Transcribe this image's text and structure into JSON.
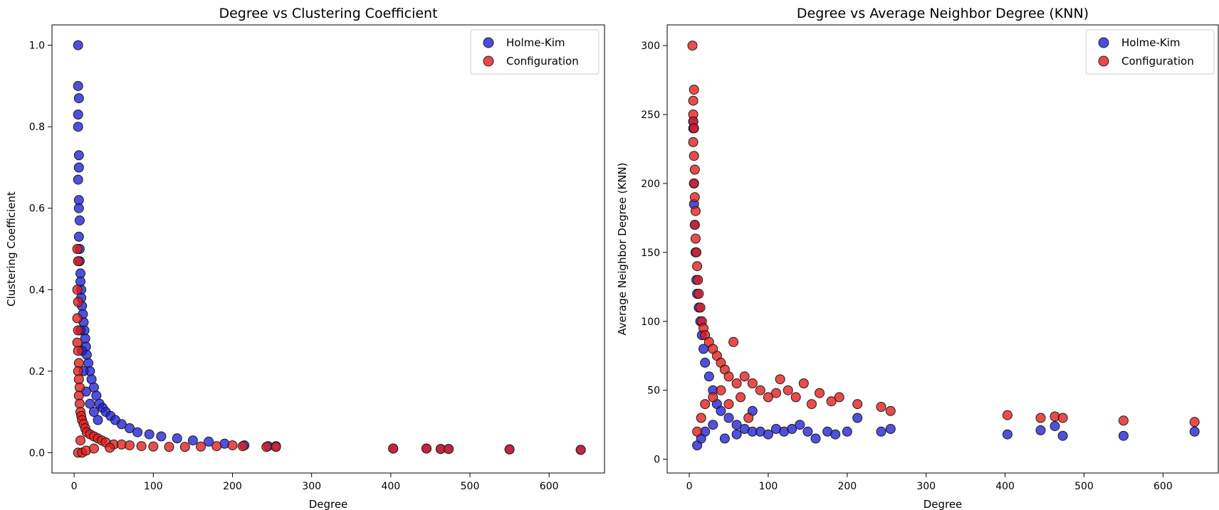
{
  "chart_data": [
    {
      "type": "scatter",
      "title": "Degree vs Clustering Coefficient",
      "xlabel": "Degree",
      "ylabel": "Clustering Coefficient",
      "xlim": [
        -28,
        670
      ],
      "ylim": [
        -0.05,
        1.05
      ],
      "xticks": [
        0,
        100,
        200,
        300,
        400,
        500,
        600
      ],
      "yticks": [
        0.0,
        0.2,
        0.4,
        0.6,
        0.8,
        1.0
      ],
      "ytick_labels": [
        "0.0",
        "0.2",
        "0.4",
        "0.6",
        "0.8",
        "1.0"
      ],
      "legend_position": "top-right",
      "series": [
        {
          "name": "Holme-Kim",
          "color": "#1f1fd6",
          "points": [
            [
              5,
              1.0
            ],
            [
              5,
              0.9
            ],
            [
              6,
              0.87
            ],
            [
              5,
              0.83
            ],
            [
              5,
              0.8
            ],
            [
              6,
              0.73
            ],
            [
              6,
              0.7
            ],
            [
              5,
              0.67
            ],
            [
              6,
              0.62
            ],
            [
              6,
              0.6
            ],
            [
              7,
              0.57
            ],
            [
              6,
              0.53
            ],
            [
              7,
              0.5
            ],
            [
              7,
              0.47
            ],
            [
              8,
              0.44
            ],
            [
              8,
              0.42
            ],
            [
              9,
              0.4
            ],
            [
              9,
              0.38
            ],
            [
              10,
              0.36
            ],
            [
              11,
              0.34
            ],
            [
              12,
              0.32
            ],
            [
              13,
              0.3
            ],
            [
              14,
              0.28
            ],
            [
              15,
              0.26
            ],
            [
              16,
              0.24
            ],
            [
              18,
              0.22
            ],
            [
              20,
              0.2
            ],
            [
              22,
              0.18
            ],
            [
              25,
              0.16
            ],
            [
              28,
              0.14
            ],
            [
              32,
              0.12
            ],
            [
              36,
              0.11
            ],
            [
              40,
              0.1
            ],
            [
              46,
              0.09
            ],
            [
              52,
              0.08
            ],
            [
              60,
              0.07
            ],
            [
              70,
              0.06
            ],
            [
              80,
              0.05
            ],
            [
              95,
              0.045
            ],
            [
              110,
              0.04
            ],
            [
              130,
              0.035
            ],
            [
              150,
              0.03
            ],
            [
              170,
              0.027
            ],
            [
              190,
              0.022
            ],
            [
              215,
              0.018
            ],
            [
              245,
              0.016
            ],
            [
              255,
              0.016
            ],
            [
              403,
              0.01
            ],
            [
              445,
              0.01
            ],
            [
              463,
              0.009
            ],
            [
              473,
              0.009
            ],
            [
              550,
              0.008
            ],
            [
              640,
              0.007
            ],
            [
              10,
              0.25
            ],
            [
              12,
              0.2
            ],
            [
              15,
              0.15
            ],
            [
              20,
              0.12
            ],
            [
              25,
              0.1
            ],
            [
              30,
              0.08
            ],
            [
              8,
              0.3
            ]
          ]
        },
        {
          "name": "Configuration",
          "color": "#e41a1a",
          "points": [
            [
              4,
              0.5
            ],
            [
              5,
              0.47
            ],
            [
              4,
              0.4
            ],
            [
              5,
              0.37
            ],
            [
              4,
              0.33
            ],
            [
              5,
              0.3
            ],
            [
              4,
              0.27
            ],
            [
              5,
              0.25
            ],
            [
              6,
              0.22
            ],
            [
              5,
              0.2
            ],
            [
              6,
              0.18
            ],
            [
              7,
              0.16
            ],
            [
              6,
              0.14
            ],
            [
              7,
              0.12
            ],
            [
              8,
              0.1
            ],
            [
              9,
              0.09
            ],
            [
              10,
              0.08
            ],
            [
              12,
              0.07
            ],
            [
              14,
              0.06
            ],
            [
              16,
              0.05
            ],
            [
              20,
              0.045
            ],
            [
              25,
              0.04
            ],
            [
              30,
              0.035
            ],
            [
              35,
              0.03
            ],
            [
              40,
              0.025
            ],
            [
              50,
              0.02
            ],
            [
              60,
              0.02
            ],
            [
              70,
              0.018
            ],
            [
              85,
              0.016
            ],
            [
              100,
              0.015
            ],
            [
              120,
              0.014
            ],
            [
              140,
              0.014
            ],
            [
              160,
              0.015
            ],
            [
              180,
              0.016
            ],
            [
              200,
              0.018
            ],
            [
              213,
              0.016
            ],
            [
              243,
              0.014
            ],
            [
              255,
              0.014
            ],
            [
              403,
              0.01
            ],
            [
              445,
              0.01
            ],
            [
              463,
              0.009
            ],
            [
              473,
              0.009
            ],
            [
              550,
              0.008
            ],
            [
              640,
              0.007
            ],
            [
              5,
              0.0
            ],
            [
              10,
              0.0
            ],
            [
              15,
              0.005
            ],
            [
              25,
              0.01
            ],
            [
              45,
              0.012
            ],
            [
              8,
              0.03
            ]
          ]
        }
      ]
    },
    {
      "type": "scatter",
      "title": "Degree vs Average Neighbor Degree (KNN)",
      "xlabel": "Degree",
      "ylabel": "Average Neighbor Degree (KNN)",
      "xlim": [
        -28,
        670
      ],
      "ylim": [
        -10,
        315
      ],
      "xticks": [
        0,
        100,
        200,
        300,
        400,
        500,
        600
      ],
      "yticks": [
        0,
        50,
        100,
        150,
        200,
        250,
        300
      ],
      "ytick_labels": [
        "0",
        "50",
        "100",
        "150",
        "200",
        "250",
        "300"
      ],
      "legend_position": "top-right",
      "series": [
        {
          "name": "Holme-Kim",
          "color": "#1f1fd6",
          "points": [
            [
              5,
              245
            ],
            [
              5,
              240
            ],
            [
              6,
              200
            ],
            [
              6,
              185
            ],
            [
              7,
              170
            ],
            [
              8,
              150
            ],
            [
              9,
              130
            ],
            [
              10,
              120
            ],
            [
              12,
              110
            ],
            [
              14,
              100
            ],
            [
              16,
              90
            ],
            [
              18,
              80
            ],
            [
              20,
              70
            ],
            [
              25,
              60
            ],
            [
              30,
              50
            ],
            [
              35,
              40
            ],
            [
              40,
              35
            ],
            [
              50,
              30
            ],
            [
              60,
              25
            ],
            [
              70,
              22
            ],
            [
              80,
              20
            ],
            [
              90,
              20
            ],
            [
              100,
              18
            ],
            [
              110,
              22
            ],
            [
              120,
              20
            ],
            [
              130,
              22
            ],
            [
              140,
              25
            ],
            [
              150,
              20
            ],
            [
              160,
              15
            ],
            [
              175,
              20
            ],
            [
              185,
              18
            ],
            [
              200,
              20
            ],
            [
              213,
              30
            ],
            [
              243,
              20
            ],
            [
              255,
              22
            ],
            [
              403,
              18
            ],
            [
              445,
              21
            ],
            [
              463,
              24
            ],
            [
              473,
              17
            ],
            [
              550,
              17
            ],
            [
              640,
              20
            ],
            [
              10,
              10
            ],
            [
              15,
              15
            ],
            [
              20,
              20
            ],
            [
              30,
              25
            ],
            [
              45,
              15
            ],
            [
              60,
              18
            ],
            [
              80,
              35
            ]
          ]
        },
        {
          "name": "Configuration",
          "color": "#e41a1a",
          "points": [
            [
              4,
              300
            ],
            [
              6,
              268
            ],
            [
              5,
              260
            ],
            [
              5,
              250
            ],
            [
              5,
              245
            ],
            [
              6,
              240
            ],
            [
              5,
              230
            ],
            [
              6,
              220
            ],
            [
              7,
              210
            ],
            [
              6,
              200
            ],
            [
              7,
              190
            ],
            [
              8,
              180
            ],
            [
              7,
              170
            ],
            [
              8,
              160
            ],
            [
              9,
              150
            ],
            [
              10,
              140
            ],
            [
              11,
              130
            ],
            [
              12,
              120
            ],
            [
              14,
              110
            ],
            [
              16,
              100
            ],
            [
              18,
              95
            ],
            [
              20,
              90
            ],
            [
              25,
              85
            ],
            [
              30,
              80
            ],
            [
              35,
              75
            ],
            [
              40,
              70
            ],
            [
              45,
              65
            ],
            [
              50,
              60
            ],
            [
              56,
              85
            ],
            [
              60,
              55
            ],
            [
              70,
              60
            ],
            [
              80,
              55
            ],
            [
              90,
              50
            ],
            [
              100,
              45
            ],
            [
              110,
              48
            ],
            [
              115,
              58
            ],
            [
              125,
              50
            ],
            [
              135,
              45
            ],
            [
              145,
              55
            ],
            [
              155,
              40
            ],
            [
              165,
              48
            ],
            [
              180,
              42
            ],
            [
              190,
              45
            ],
            [
              213,
              40
            ],
            [
              243,
              38
            ],
            [
              255,
              35
            ],
            [
              403,
              32
            ],
            [
              445,
              30
            ],
            [
              463,
              31
            ],
            [
              473,
              30
            ],
            [
              550,
              28
            ],
            [
              640,
              27
            ],
            [
              10,
              20
            ],
            [
              15,
              30
            ],
            [
              20,
              40
            ],
            [
              30,
              45
            ],
            [
              40,
              50
            ],
            [
              50,
              40
            ],
            [
              65,
              45
            ],
            [
              75,
              30
            ]
          ]
        }
      ]
    }
  ]
}
